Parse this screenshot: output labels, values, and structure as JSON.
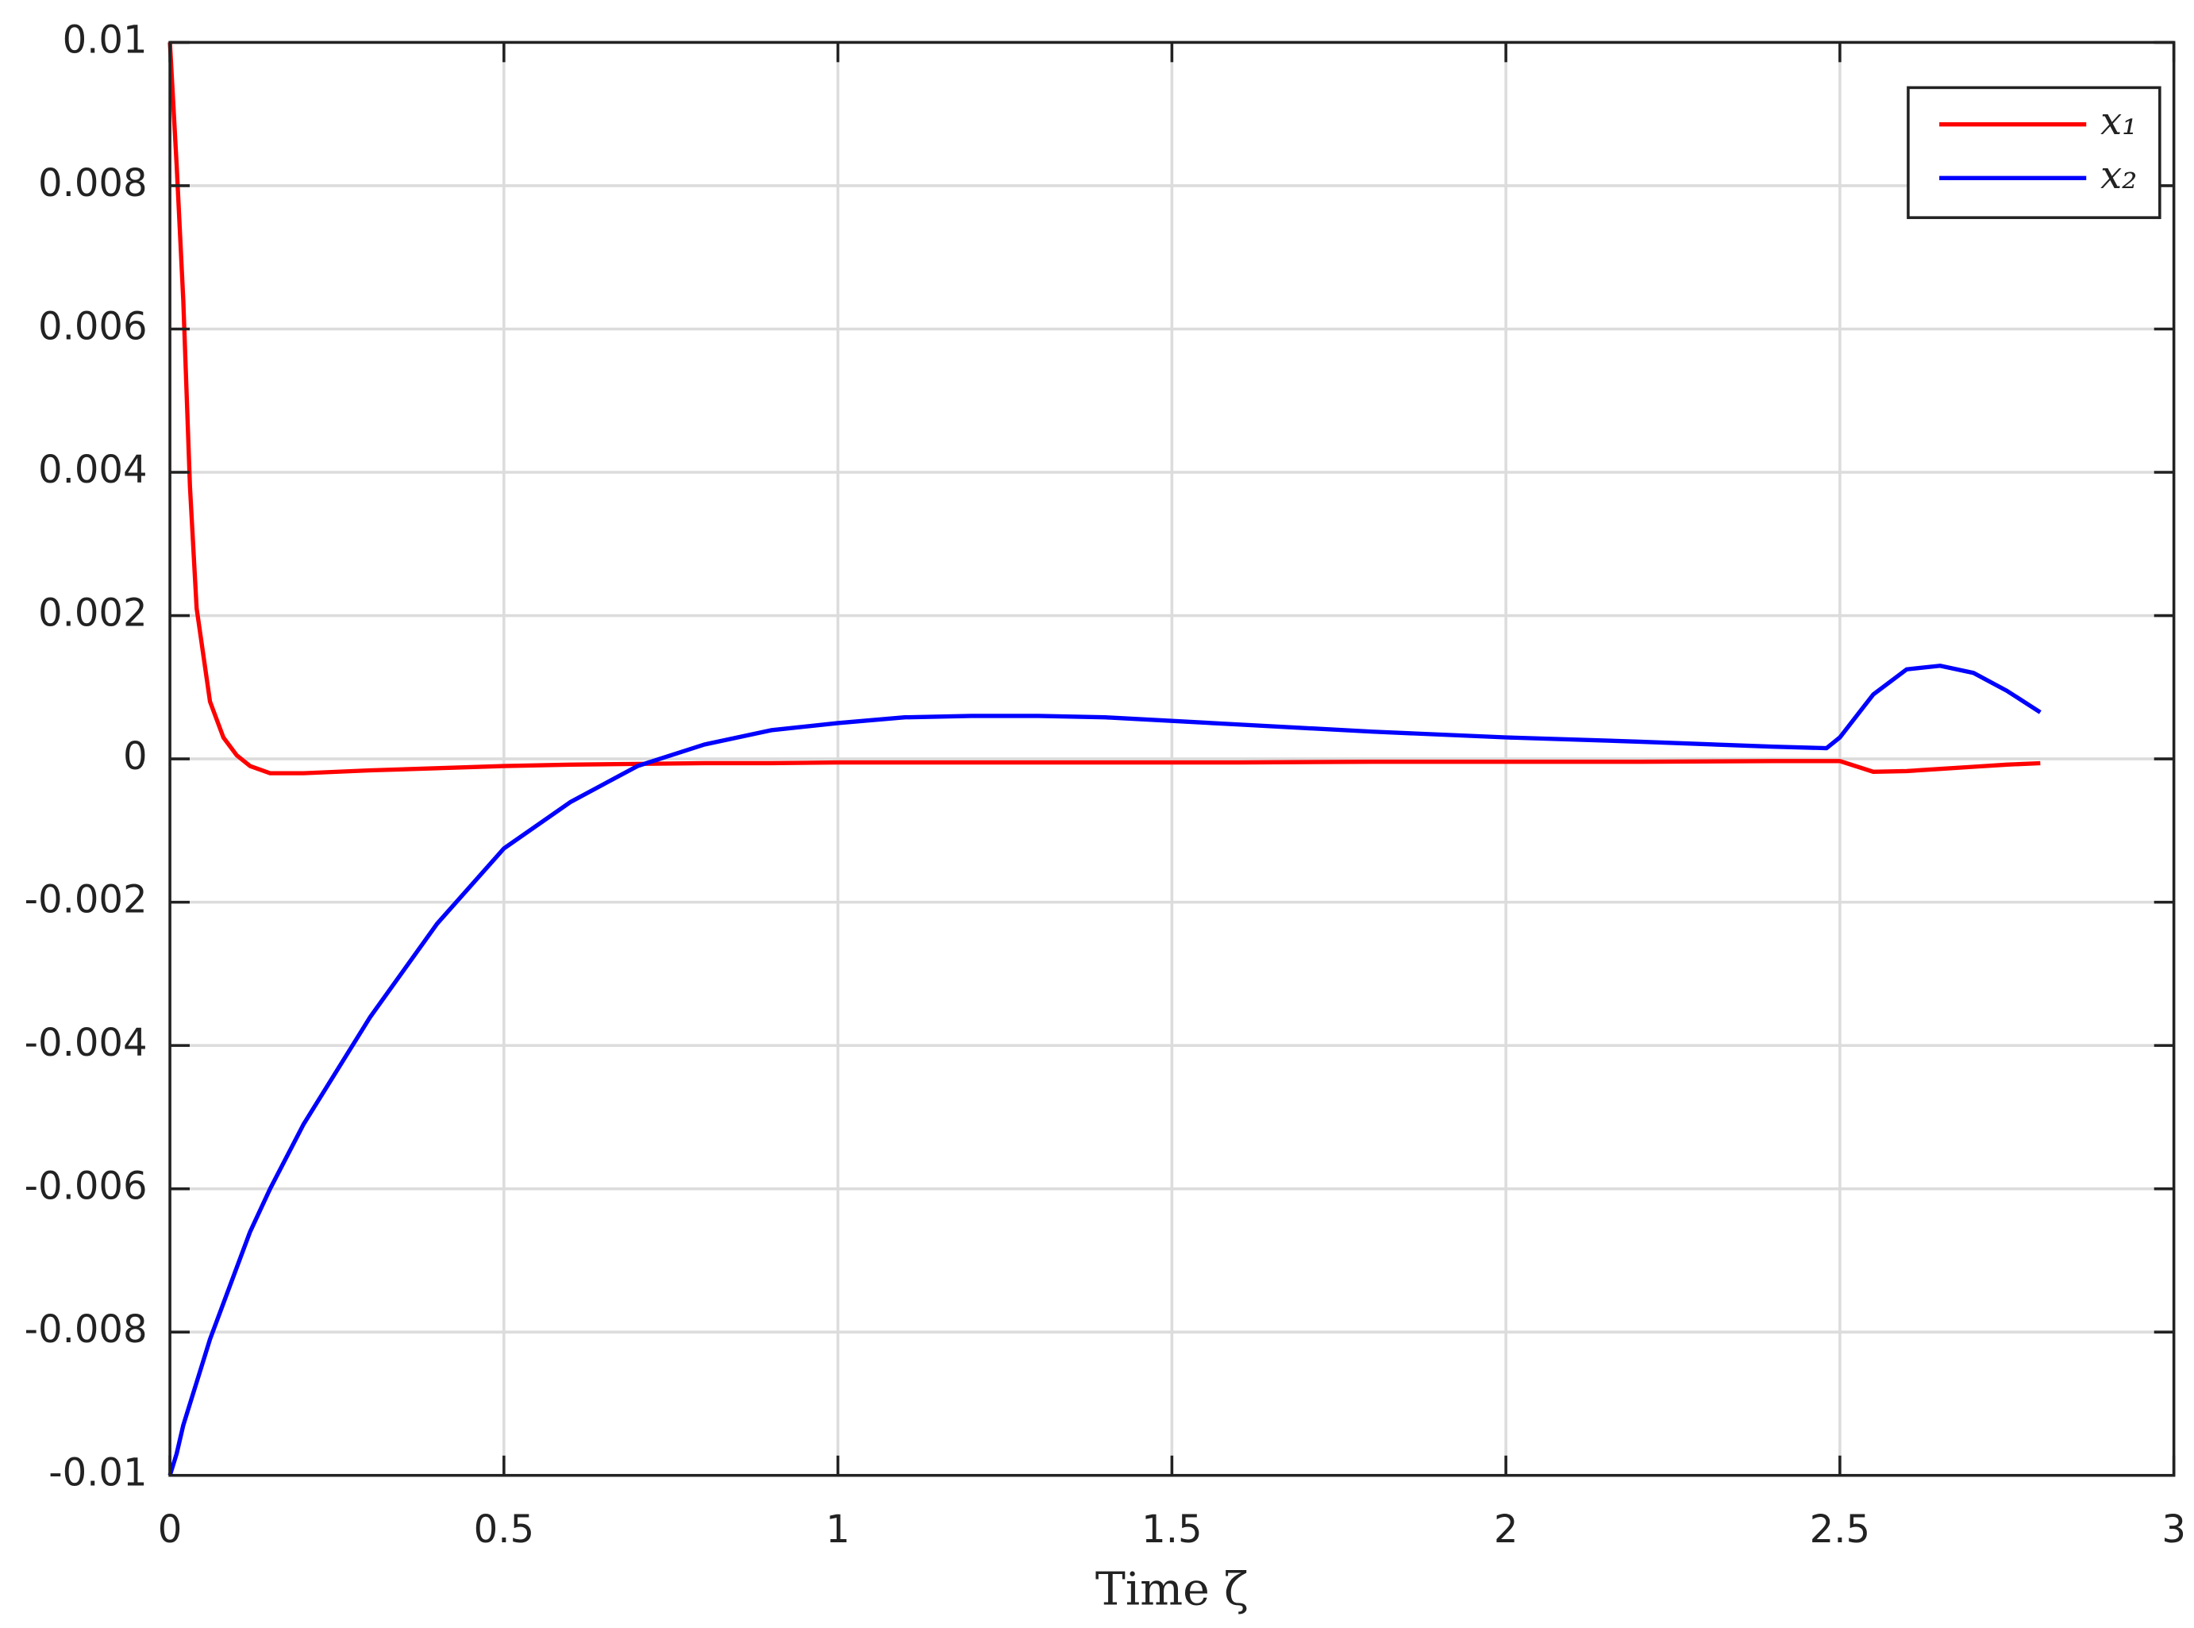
{
  "chart_data": {
    "type": "line",
    "xlabel": "Time ζ",
    "x": [
      0,
      0.01,
      0.02,
      0.03,
      0.04,
      0.06,
      0.08,
      0.1,
      0.12,
      0.15,
      0.2,
      0.3,
      0.4,
      0.5,
      0.6,
      0.7,
      0.8,
      0.9,
      1.0,
      1.1,
      1.2,
      1.3,
      1.4,
      1.5,
      1.6,
      1.8,
      2.0,
      2.2,
      2.4,
      2.48,
      2.5,
      2.55,
      2.6,
      2.65,
      2.7,
      2.75,
      2.8
    ],
    "series": [
      {
        "name": "x₁",
        "color": "#ff0000",
        "values": [
          0.01,
          0.0083,
          0.0064,
          0.0038,
          0.0021,
          0.0008,
          0.0003,
          5e-05,
          -0.0001,
          -0.0002,
          -0.0002,
          -0.00016,
          -0.00013,
          -0.0001,
          -8e-05,
          -7e-05,
          -6e-05,
          -6e-05,
          -5e-05,
          -5e-05,
          -5e-05,
          -5e-05,
          -5e-05,
          -5e-05,
          -5e-05,
          -4e-05,
          -4e-05,
          -4e-05,
          -3e-05,
          -3e-05,
          -3e-05,
          -0.00018,
          -0.00017,
          -0.00014,
          -0.00011,
          -8e-05,
          -6e-05
        ]
      },
      {
        "name": "x₂",
        "color": "#0000ff",
        "values": [
          -0.01,
          -0.0097,
          -0.0093,
          -0.009,
          -0.0087,
          -0.0081,
          -0.0076,
          -0.0071,
          -0.0066,
          -0.006,
          -0.0051,
          -0.0036,
          -0.0023,
          -0.00125,
          -0.0006,
          -0.0001,
          0.0002,
          0.0004,
          0.0005,
          0.00058,
          0.0006,
          0.0006,
          0.00058,
          0.00053,
          0.00048,
          0.00038,
          0.0003,
          0.00024,
          0.00017,
          0.00015,
          0.0003,
          0.0009,
          0.00125,
          0.0013,
          0.0012,
          0.00095,
          0.00065
        ]
      }
    ],
    "xlim": [
      0,
      3
    ],
    "xticks": [
      0,
      0.5,
      1,
      1.5,
      2,
      2.5,
      3
    ],
    "ylim": [
      -0.01,
      0.01
    ],
    "yticks": [
      -0.01,
      -0.008,
      -0.006,
      -0.004,
      -0.002,
      0,
      0.002,
      0.004,
      0.006,
      0.008,
      0.01
    ],
    "grid": true,
    "legend": "upper right"
  }
}
